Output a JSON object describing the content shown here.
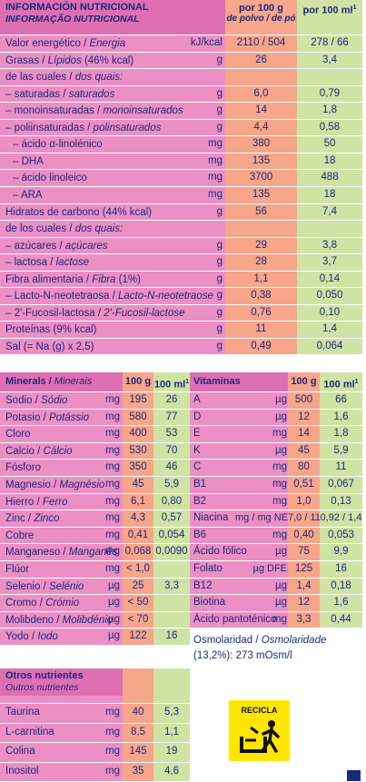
{
  "colors": {
    "pink": "#ec8fc4",
    "salmon": "#f7a58b",
    "green": "#cfe3a4",
    "header_pink": "#de6fb3",
    "text": "#1b2a78"
  },
  "top": {
    "header": {
      "title": "INFORMACIÓN NUTRICIONAL",
      "subtitle": "INFORMAÇÃO NUTRICIONAL",
      "col100g": "por 100 g",
      "col100g_sub": "de polvo / de pó",
      "col100ml": "por 100 ml"
    },
    "rows": [
      {
        "label": "Valor energético / ",
        "label_it": "Energia",
        "unit": "kJ/kcal",
        "v100g": "2110 / 504",
        "v100ml": "278 / 66"
      },
      {
        "label": "Grasas / ",
        "label_it": "Lípidos",
        "label_tail": " (46% kcal)",
        "unit": "g",
        "v100g": "26",
        "v100ml": "3,4"
      },
      {
        "label": "de las cuales / ",
        "label_it": "dos quais:",
        "unit": "",
        "v100g": "",
        "v100ml": ""
      },
      {
        "label": "– saturadas / ",
        "label_it": "saturados",
        "unit": "g",
        "v100g": "6,0",
        "v100ml": "0,79"
      },
      {
        "label": "– monoinsaturadas / ",
        "label_it": "monoinsaturados",
        "unit": "g",
        "v100g": "14",
        "v100ml": "1,8"
      },
      {
        "label": "– poliinsaturadas / ",
        "label_it": "polinsaturados",
        "unit": "g",
        "v100g": "4,4",
        "v100ml": "0,58"
      },
      {
        "label": "– ácido α-linolénico",
        "label_it": "",
        "unit": "mg",
        "v100g": "380",
        "v100ml": "50",
        "indent": true
      },
      {
        "label": "– DHA",
        "label_it": "",
        "unit": "mg",
        "v100g": "135",
        "v100ml": "18",
        "indent": true
      },
      {
        "label": "– ácido linoleico",
        "label_it": "",
        "unit": "mg",
        "v100g": "3700",
        "v100ml": "488",
        "indent": true
      },
      {
        "label": "– ARA",
        "label_it": "",
        "unit": "mg",
        "v100g": "135",
        "v100ml": "18",
        "indent": true
      },
      {
        "label": "Hidratos de carbono (44% kcal)",
        "label_it": "",
        "unit": "g",
        "v100g": "56",
        "v100ml": "7,4"
      },
      {
        "label": "de los cuales / ",
        "label_it": "dos quais:",
        "unit": "",
        "v100g": "",
        "v100ml": ""
      },
      {
        "label": "– azúcares / ",
        "label_it": "açúcares",
        "unit": "g",
        "v100g": "29",
        "v100ml": "3,8"
      },
      {
        "label": "– lactosa / ",
        "label_it": "lactose",
        "unit": "g",
        "v100g": "28",
        "v100ml": "3,7",
        "indent_small": true
      },
      {
        "label": "Fibra alimentaria / ",
        "label_it": "Fibra",
        "label_tail": " (1%)",
        "unit": "g",
        "v100g": "1,1",
        "v100ml": "0,14"
      },
      {
        "label": "– Lacto-N-neotetraosa / ",
        "label_it": "Lacto-N-neotetraose",
        "unit": "g",
        "v100g": "0,38",
        "v100ml": "0,050"
      },
      {
        "label": "– 2'-Fucosil-lactosa / ",
        "label_it": "2'-Fucosil-lactose",
        "unit": "g",
        "v100g": "0,76",
        "v100ml": "0,10"
      },
      {
        "label": "Proteínas (9% kcal)",
        "label_it": "",
        "unit": "g",
        "v100g": "11",
        "v100ml": "1,4"
      },
      {
        "label": "Sal (= Na (g) x 2,5)",
        "label_it": "",
        "unit": "g",
        "v100g": "0,49",
        "v100ml": "0,064"
      }
    ]
  },
  "minerals": {
    "title": "Minerals / ",
    "title_it": "Minerais",
    "col100g": "100 g",
    "col100ml": "100 ml",
    "rows": [
      {
        "label": "Sodio / ",
        "label_it": "Sódio",
        "unit": "mg",
        "v100g": "195",
        "v100ml": "26"
      },
      {
        "label": "Potasio / ",
        "label_it": "Potássio",
        "unit": "mg",
        "v100g": "580",
        "v100ml": "77"
      },
      {
        "label": "Cloro",
        "label_it": "",
        "unit": "mg",
        "v100g": "400",
        "v100ml": "53"
      },
      {
        "label": "Calcio / ",
        "label_it": "Cálcio",
        "unit": "mg",
        "v100g": "530",
        "v100ml": "70"
      },
      {
        "label": "Fósforo",
        "label_it": "",
        "unit": "mg",
        "v100g": "350",
        "v100ml": "46"
      },
      {
        "label": "Magnesio / ",
        "label_it": "Magnésio",
        "unit": "mg",
        "v100g": "45",
        "v100ml": "5,9"
      },
      {
        "label": "Hierro / ",
        "label_it": "Ferro",
        "unit": "mg",
        "v100g": "6,1",
        "v100ml": "0,80"
      },
      {
        "label": "Zinc / ",
        "label_it": "Zinco",
        "unit": "mg",
        "v100g": "4,3",
        "v100ml": "0,57"
      },
      {
        "label": "Cobre",
        "label_it": "",
        "unit": "mg",
        "v100g": "0,41",
        "v100ml": "0,054"
      },
      {
        "label": "Manganeso / ",
        "label_it": "Manganês",
        "unit": "mg",
        "v100g": "0,068",
        "v100ml": "0,0090"
      },
      {
        "label": "Flúor",
        "label_it": "",
        "unit": "mg",
        "v100g": "< 1,0",
        "v100ml": ""
      },
      {
        "label": "Selenio / ",
        "label_it": "Selénio",
        "unit": "µg",
        "v100g": "25",
        "v100ml": "3,3"
      },
      {
        "label": "Cromo / ",
        "label_it": "Crómio",
        "unit": "µg",
        "v100g": "< 50",
        "v100ml": ""
      },
      {
        "label": "Molibdeno / ",
        "label_it": "Molibdénio",
        "unit": "µg",
        "v100g": "< 70",
        "v100ml": ""
      },
      {
        "label": "Yodo / ",
        "label_it": "Iodo",
        "unit": "µg",
        "v100g": "122",
        "v100ml": "16"
      }
    ]
  },
  "vitamins": {
    "title": "Vitaminas",
    "col100g": "100 g",
    "col100ml": "100 ml",
    "rows": [
      {
        "label": "A",
        "unit": "µg",
        "v100g": "500",
        "v100ml": "66"
      },
      {
        "label": "D",
        "unit": "µg",
        "v100g": "12",
        "v100ml": "1,6"
      },
      {
        "label": "E",
        "unit": "mg",
        "v100g": "14",
        "v100ml": "1,8"
      },
      {
        "label": "K",
        "unit": "µg",
        "v100g": "45",
        "v100ml": "5,9"
      },
      {
        "label": "C",
        "unit": "mg",
        "v100g": "80",
        "v100ml": "11"
      },
      {
        "label": "B1",
        "unit": "mg",
        "v100g": "0,51",
        "v100ml": "0,067"
      },
      {
        "label": "B2",
        "unit": "mg",
        "v100g": "1,0",
        "v100ml": "0,13"
      },
      {
        "label": "Niacina",
        "unit": "mg / mg NE",
        "v100g": "7,0 / 11",
        "v100ml": "0,92 / 1,4"
      },
      {
        "label": "B6",
        "unit": "mg",
        "v100g": "0,40",
        "v100ml": "0,053"
      },
      {
        "label": "Ácido fólico",
        "unit": "µg",
        "v100g": "75",
        "v100ml": "9,9"
      },
      {
        "label": "Folato",
        "unit": "µg DFE",
        "v100g": "125",
        "v100ml": "16"
      },
      {
        "label": "B12",
        "unit": "µg",
        "v100g": "1,4",
        "v100ml": "0,18"
      },
      {
        "label": "Biotina",
        "unit": "µg",
        "v100g": "12",
        "v100ml": "1,6"
      },
      {
        "label": "Ácido pantoténico",
        "unit": "mg",
        "v100g": "3,3",
        "v100ml": "0,44"
      }
    ],
    "osmolarity_label": "Osmolaridad / ",
    "osmolarity_label_it": "Osmolaridade",
    "osmolarity_value": "(13,2%): 273 mOsm/l"
  },
  "others": {
    "title": "Otros nutrientes",
    "subtitle": "Outros nutrientes",
    "rows": [
      {
        "label": "Taurina",
        "unit": "mg",
        "v100g": "40",
        "v100ml": "5,3"
      },
      {
        "label": "L-carnitina",
        "unit": "mg",
        "v100g": "8,5",
        "v100ml": "1,1"
      },
      {
        "label": "Colina",
        "unit": "mg",
        "v100g": "145",
        "v100ml": "19"
      },
      {
        "label": "Inositol",
        "unit": "mg",
        "v100g": "35",
        "v100ml": "4,6"
      }
    ]
  },
  "recycle": {
    "label": "RECICLA",
    "icon": "recycle-bin-icon"
  },
  "superscript": "1"
}
